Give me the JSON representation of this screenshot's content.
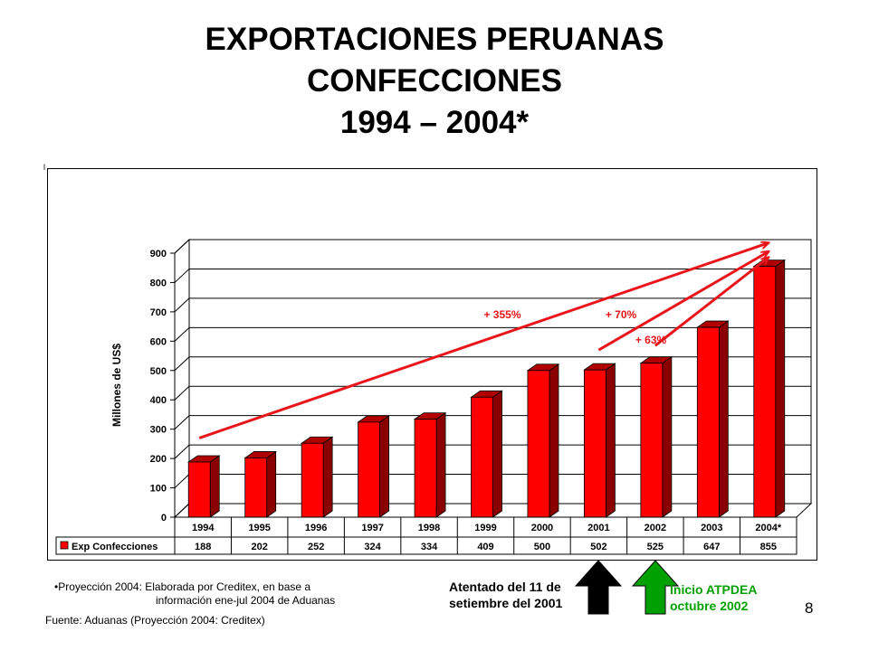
{
  "title": {
    "line1": "EXPORTACIONES PERUANAS",
    "line2": "CONFECCIONES",
    "line3": "1994 – 2004*"
  },
  "stray_mark": "l",
  "chart_data": {
    "type": "bar",
    "style": "3d",
    "categories": [
      "1994",
      "1995",
      "1996",
      "1997",
      "1998",
      "1999",
      "2000",
      "2001",
      "2002",
      "2003",
      "2004*"
    ],
    "series": [
      {
        "name": "Exp Confecciones",
        "color": "#ff0000",
        "values": [
          188,
          202,
          252,
          324,
          334,
          409,
          500,
          502,
          525,
          647,
          855
        ]
      }
    ],
    "ylabel": "Millones de US$",
    "ylim": [
      0,
      900
    ],
    "yticks": [
      0,
      100,
      200,
      300,
      400,
      500,
      600,
      700,
      800,
      900
    ],
    "grid": true,
    "legend": "data table below chart",
    "table_row_label": "Exp Confecciones",
    "table_values": [
      "188",
      "202",
      "252",
      "324",
      "334",
      "409",
      "500",
      "502",
      "525",
      "647",
      "855"
    ],
    "annotations": [
      {
        "label": "+ 355%",
        "from_year": "1994",
        "to_year": "2004*",
        "from_value": 270,
        "to_value": 935
      },
      {
        "label": "+ 70%",
        "from_year": "2001",
        "to_year": "2004*",
        "from_value": 570,
        "to_value": 905
      },
      {
        "label": "+ 63%",
        "from_year": "2002",
        "to_year": "2004*",
        "from_value": 585,
        "to_value": 885
      }
    ],
    "annotation_color": "#e8151b"
  },
  "notes": {
    "projection_line1": "•Proyección 2004: Elaborada por Creditex, en base a",
    "projection_line2": "información ene-jul 2004 de Aduanas",
    "source": "Fuente: Aduanas (Proyección 2004: Creditex)"
  },
  "events": [
    {
      "line1": "Atentado del 11 de",
      "line2": "setiembre del 2001",
      "arrow_color": "#000000",
      "text_color": "#000000"
    },
    {
      "line1": "Inicio ATPDEA",
      "line2": "octubre 2002",
      "arrow_color": "#00a000",
      "text_color": "#00a000"
    }
  ],
  "page_number": "8"
}
